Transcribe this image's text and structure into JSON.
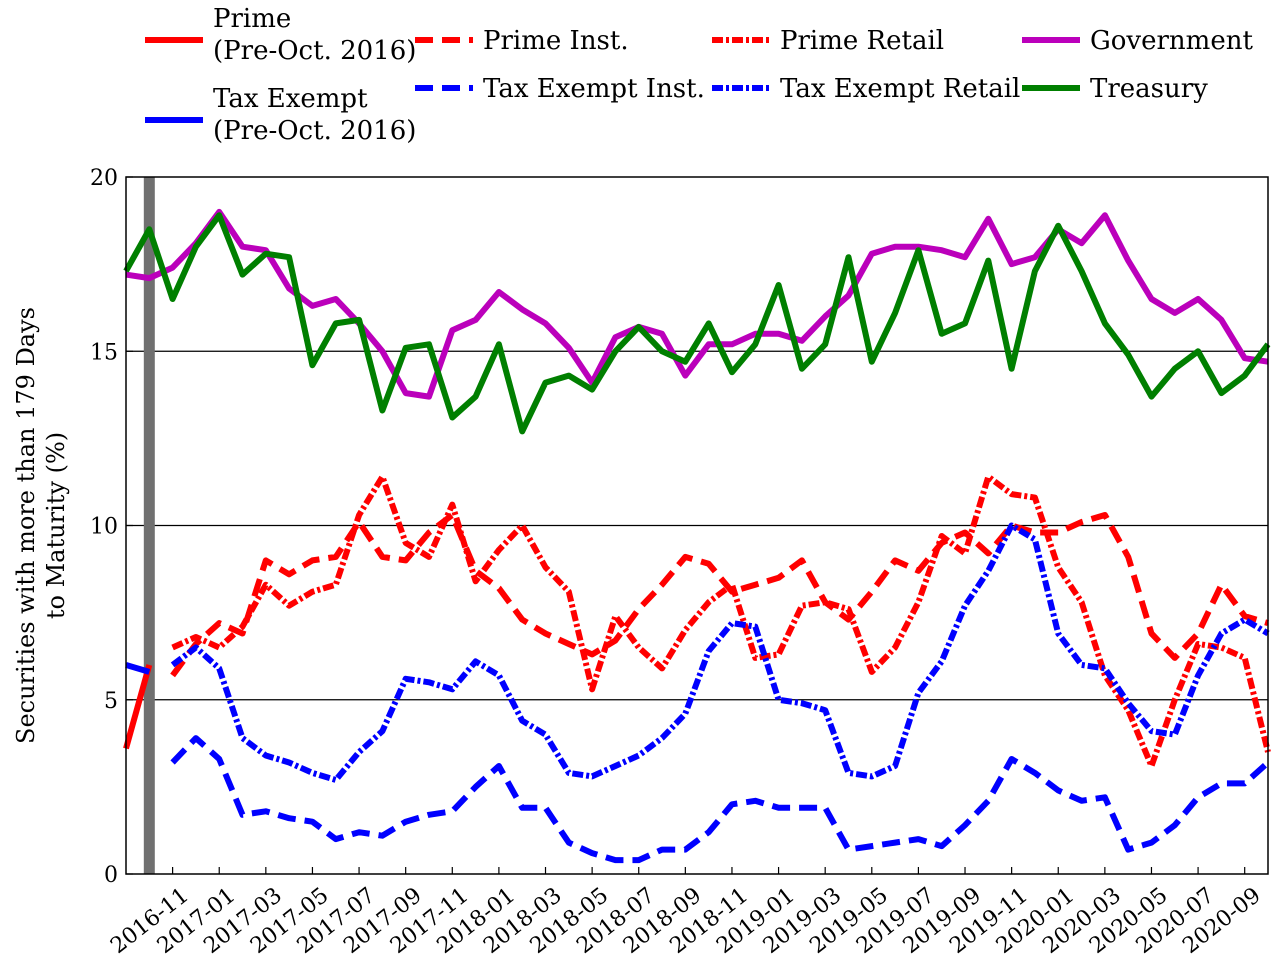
{
  "chart_data": {
    "type": "line",
    "ylabel_lines": [
      "Securities with more than 179 Days",
      "to Maturity (%)"
    ],
    "ylim": [
      0,
      20
    ],
    "yticks": [
      0,
      5,
      10,
      15,
      20
    ],
    "grid": "horizontal",
    "legend_position": "top",
    "vline": {
      "x": "2016-10",
      "color": "#707070"
    },
    "x": [
      "2016-09",
      "2016-10",
      "2016-11",
      "2016-12",
      "2017-01",
      "2017-02",
      "2017-03",
      "2017-04",
      "2017-05",
      "2017-06",
      "2017-07",
      "2017-08",
      "2017-09",
      "2017-10",
      "2017-11",
      "2017-12",
      "2018-01",
      "2018-02",
      "2018-03",
      "2018-04",
      "2018-05",
      "2018-06",
      "2018-07",
      "2018-08",
      "2018-09",
      "2018-10",
      "2018-11",
      "2018-12",
      "2019-01",
      "2019-02",
      "2019-03",
      "2019-04",
      "2019-05",
      "2019-06",
      "2019-07",
      "2019-08",
      "2019-09",
      "2019-10",
      "2019-11",
      "2019-12",
      "2020-01",
      "2020-02",
      "2020-03",
      "2020-04",
      "2020-05",
      "2020-06",
      "2020-07",
      "2020-08",
      "2020-09",
      "2020-10"
    ],
    "xticks": [
      "2016-11",
      "2017-01",
      "2017-03",
      "2017-05",
      "2017-07",
      "2017-09",
      "2017-11",
      "2018-01",
      "2018-03",
      "2018-05",
      "2018-07",
      "2018-09",
      "2018-11",
      "2019-01",
      "2019-03",
      "2019-05",
      "2019-07",
      "2019-09",
      "2019-11",
      "2020-01",
      "2020-03",
      "2020-05",
      "2020-07",
      "2020-09"
    ],
    "series": [
      {
        "name": "Prime",
        "name_line2": "(Pre-Oct. 2016)",
        "color": "#ff0000",
        "style": "solid",
        "values": [
          3.6,
          6.0,
          null,
          null,
          null,
          null,
          null,
          null,
          null,
          null,
          null,
          null,
          null,
          null,
          null,
          null,
          null,
          null,
          null,
          null,
          null,
          null,
          null,
          null,
          null,
          null,
          null,
          null,
          null,
          null,
          null,
          null,
          null,
          null,
          null,
          null,
          null,
          null,
          null,
          null,
          null,
          null,
          null,
          null,
          null,
          null,
          null,
          null,
          null,
          null
        ]
      },
      {
        "name": "Tax Exempt",
        "name_line2": "(Pre-Oct. 2016)",
        "color": "#0000ff",
        "style": "solid",
        "values": [
          6.0,
          5.8,
          null,
          null,
          null,
          null,
          null,
          null,
          null,
          null,
          null,
          null,
          null,
          null,
          null,
          null,
          null,
          null,
          null,
          null,
          null,
          null,
          null,
          null,
          null,
          null,
          null,
          null,
          null,
          null,
          null,
          null,
          null,
          null,
          null,
          null,
          null,
          null,
          null,
          null,
          null,
          null,
          null,
          null,
          null,
          null,
          null,
          null,
          null,
          null
        ]
      },
      {
        "name": "Prime Inst.",
        "color": "#ff0000",
        "style": "dashed",
        "values": [
          null,
          null,
          5.7,
          6.6,
          7.2,
          6.9,
          9.0,
          8.6,
          9.0,
          9.1,
          10.1,
          9.1,
          9.0,
          9.8,
          10.3,
          8.7,
          8.2,
          7.3,
          6.9,
          6.6,
          6.3,
          6.7,
          7.6,
          8.3,
          9.1,
          8.9,
          8.1,
          8.3,
          8.5,
          9.0,
          7.8,
          7.3,
          8.1,
          9.0,
          8.7,
          9.5,
          9.8,
          9.2,
          10.0,
          9.8,
          9.8,
          10.1,
          10.3,
          9.1,
          6.9,
          6.2,
          6.9,
          8.3,
          7.4,
          7.2
        ]
      },
      {
        "name": "Prime Retail",
        "color": "#ff0000",
        "style": "dashdot",
        "values": [
          null,
          null,
          6.5,
          6.8,
          6.5,
          7.1,
          8.3,
          7.7,
          8.1,
          8.3,
          10.3,
          11.4,
          9.5,
          9.1,
          10.6,
          8.4,
          9.3,
          10.0,
          8.8,
          8.1,
          5.3,
          7.4,
          6.5,
          5.9,
          7.0,
          7.8,
          8.3,
          6.2,
          6.3,
          7.7,
          7.8,
          7.6,
          5.8,
          6.5,
          7.8,
          9.7,
          9.2,
          11.4,
          10.9,
          10.8,
          8.8,
          7.8,
          5.7,
          4.7,
          3.1,
          5.0,
          6.6,
          6.5,
          6.2,
          3.5
        ]
      },
      {
        "name": "Government",
        "color": "#bb00bb",
        "style": "solid",
        "values": [
          17.2,
          17.1,
          17.4,
          18.1,
          19.0,
          18.0,
          17.9,
          16.8,
          16.3,
          16.5,
          15.8,
          15.0,
          13.8,
          13.7,
          15.6,
          15.9,
          16.7,
          16.2,
          15.8,
          15.1,
          14.1,
          15.4,
          15.7,
          15.5,
          14.3,
          15.2,
          15.2,
          15.5,
          15.5,
          15.3,
          16.0,
          16.6,
          17.8,
          18.0,
          18.0,
          17.9,
          17.7,
          18.8,
          17.5,
          17.7,
          18.5,
          18.1,
          18.9,
          17.6,
          16.5,
          16.1,
          16.5,
          15.9,
          14.8,
          14.7
        ]
      },
      {
        "name": "Tax Exempt Inst.",
        "color": "#0000ff",
        "style": "dashed",
        "values": [
          null,
          null,
          3.2,
          3.9,
          3.3,
          1.7,
          1.8,
          1.6,
          1.5,
          1.0,
          1.2,
          1.1,
          1.5,
          1.7,
          1.8,
          2.5,
          3.1,
          1.9,
          1.9,
          0.9,
          0.6,
          0.4,
          0.4,
          0.7,
          0.7,
          1.2,
          2.0,
          2.1,
          1.9,
          1.9,
          1.9,
          0.7,
          0.8,
          0.9,
          1.0,
          0.8,
          1.4,
          2.1,
          3.3,
          2.9,
          2.4,
          2.1,
          2.2,
          0.7,
          0.9,
          1.4,
          2.2,
          2.6,
          2.6,
          3.2
        ]
      },
      {
        "name": "Tax Exempt Retail",
        "color": "#0000ff",
        "style": "dashdot",
        "values": [
          null,
          null,
          6.0,
          6.5,
          5.9,
          3.9,
          3.4,
          3.2,
          2.9,
          2.7,
          3.5,
          4.1,
          5.6,
          5.5,
          5.3,
          6.1,
          5.7,
          4.4,
          4.0,
          2.9,
          2.8,
          3.1,
          3.4,
          3.9,
          4.6,
          6.4,
          7.2,
          7.1,
          5.0,
          4.9,
          4.7,
          2.9,
          2.8,
          3.1,
          5.2,
          6.1,
          7.7,
          8.7,
          10.0,
          9.6,
          6.9,
          6.0,
          5.9,
          4.9,
          4.1,
          4.0,
          5.7,
          6.9,
          7.3,
          6.9
        ]
      },
      {
        "name": "Treasury",
        "color": "#007f00",
        "style": "solid",
        "values": [
          17.3,
          18.5,
          16.5,
          18.0,
          18.9,
          17.2,
          17.8,
          17.7,
          14.6,
          15.8,
          15.9,
          13.3,
          15.1,
          15.2,
          13.1,
          13.7,
          15.2,
          12.7,
          14.1,
          14.3,
          13.9,
          15.0,
          15.7,
          15.0,
          14.7,
          15.8,
          14.4,
          15.2,
          16.9,
          14.5,
          15.2,
          17.7,
          14.7,
          16.1,
          17.9,
          15.5,
          15.8,
          17.6,
          14.5,
          17.3,
          18.6,
          17.3,
          15.8,
          14.9,
          13.7,
          14.5,
          15.0,
          13.8,
          14.3,
          15.2
        ]
      }
    ]
  }
}
